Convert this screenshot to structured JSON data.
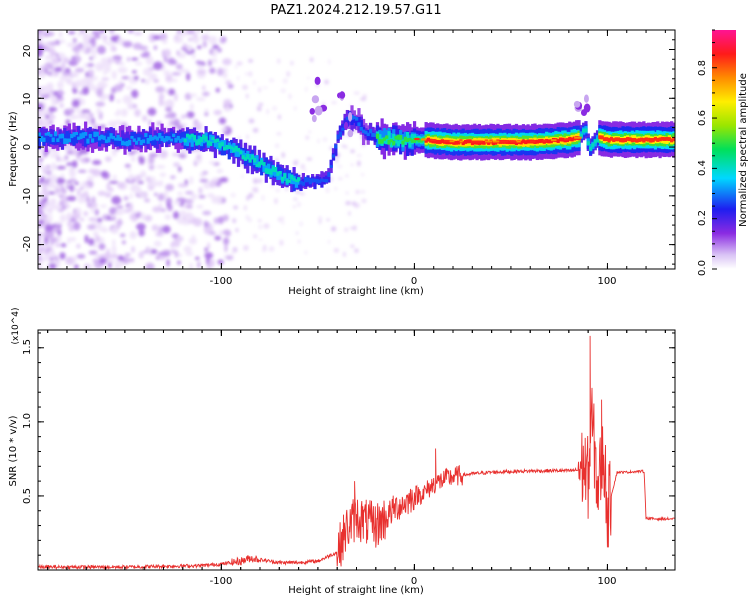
{
  "title": "PAZ1.2024.212.19.57.G11",
  "chart_data": [
    {
      "type": "heatmap",
      "xlabel": "Height of straight line (km)",
      "ylabel": "Frequency (Hz)",
      "xlim": [
        -195,
        135
      ],
      "ylim": [
        -25,
        24
      ],
      "xticklabels": [
        "-100",
        "0",
        "100"
      ],
      "yticklabels": [
        "-20",
        "-10",
        "0",
        "10",
        "20"
      ],
      "colorbar": {
        "label": "Normalized spectral amplitude",
        "range": [
          0,
          0.95
        ],
        "ticklabels": [
          "0.0",
          "0.2",
          "0.4",
          "0.6",
          "0.8"
        ]
      },
      "ridge": {
        "x": [
          -195,
          -170,
          -150,
          -130,
          -110,
          -100,
          -90,
          -80,
          -70,
          -60,
          -50,
          -45,
          -40,
          -35,
          -30,
          -25,
          -20,
          -10,
          0,
          20,
          40,
          60,
          80,
          85,
          88,
          90,
          95,
          100,
          110,
          120,
          135
        ],
        "y": [
          2,
          2,
          1.5,
          2,
          1.5,
          0.5,
          -1.5,
          -3.5,
          -6,
          -7.5,
          -7,
          -6,
          2,
          6,
          5,
          3,
          2,
          1.5,
          1.5,
          1,
          1,
          1,
          1.5,
          2,
          4,
          -0.5,
          2,
          1.5,
          1.5,
          1.5,
          1.5
        ]
      }
    },
    {
      "type": "line",
      "xlabel": "Height of straight line (km)",
      "ylabel": "SNR (10 * v/v)",
      "yscale_label": "(x10^4)",
      "xlim": [
        -195,
        135
      ],
      "ylim": [
        0,
        1.62
      ],
      "xticklabels": [
        "-100",
        "0",
        "100"
      ],
      "yticklabels": [
        "0.5",
        "1.0",
        "1.5"
      ],
      "line_color": "#e8302e",
      "series": [
        {
          "x": [
            -195,
            -150,
            -110,
            -100,
            -90,
            -85,
            -80,
            -70,
            -60,
            -50,
            -40,
            -35,
            -30,
            -25,
            -20,
            -15,
            -10,
            -5,
            0,
            5,
            10,
            15,
            20,
            25,
            30,
            40,
            50,
            60,
            70,
            80,
            85,
            88,
            90,
            92,
            95,
            98,
            100,
            105,
            110,
            115,
            119,
            120,
            125,
            135
          ],
          "y": [
            0.02,
            0.02,
            0.03,
            0.04,
            0.06,
            0.08,
            0.07,
            0.05,
            0.05,
            0.06,
            0.12,
            0.28,
            0.36,
            0.32,
            0.3,
            0.35,
            0.42,
            0.45,
            0.5,
            0.52,
            0.58,
            0.61,
            0.63,
            0.64,
            0.65,
            0.66,
            0.665,
            0.668,
            0.67,
            0.67,
            0.675,
            0.7,
            0.62,
            1.0,
            0.55,
            0.8,
            0.4,
            0.66,
            0.66,
            0.665,
            0.665,
            0.35,
            0.345,
            0.345
          ]
        }
      ],
      "peaks": {
        "x": [
          91,
          97,
          11,
          -31
        ],
        "y": [
          1.58,
          1.15,
          0.82,
          0.6
        ]
      }
    }
  ]
}
